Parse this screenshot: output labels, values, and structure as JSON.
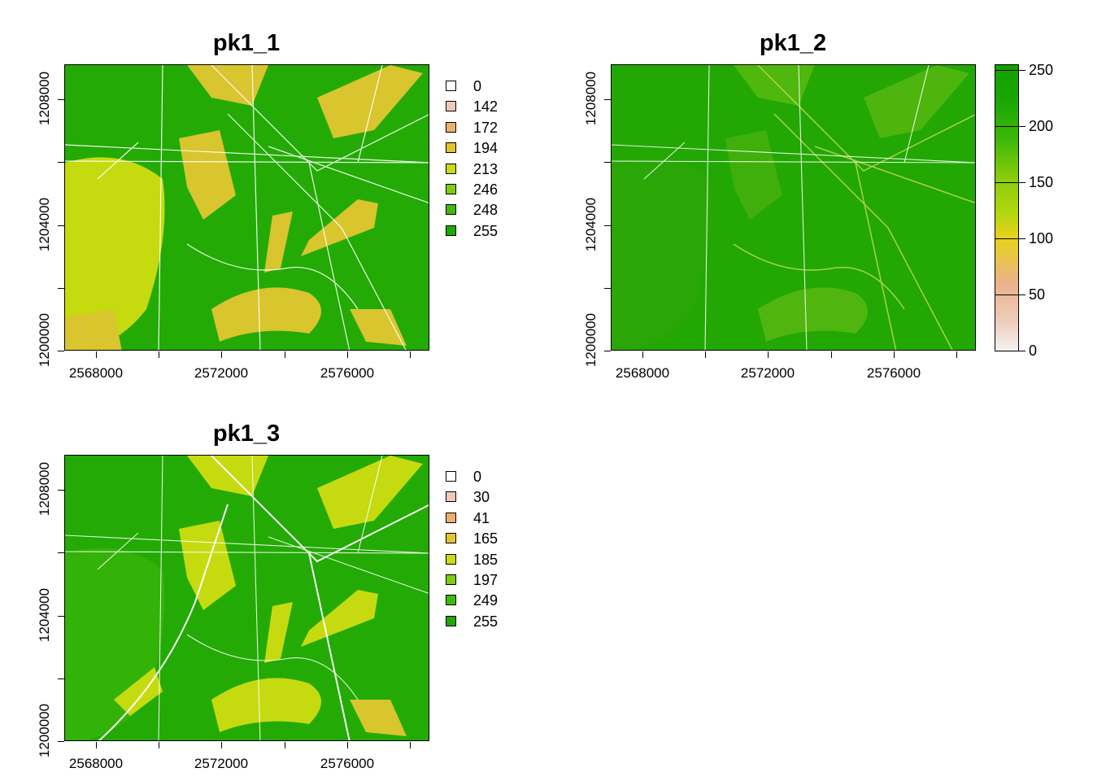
{
  "panels": [
    {
      "title": "pk1_1",
      "x_ticks": [
        "2568000",
        "2572000",
        "2576000"
      ],
      "y_ticks": [
        "1200000",
        "1204000",
        "1208000"
      ],
      "legend": {
        "type": "categorical",
        "items": [
          {
            "label": "0",
            "color": "#ffffff"
          },
          {
            "label": "142",
            "color": "#f2c9b8"
          },
          {
            "label": "172",
            "color": "#ebb06e"
          },
          {
            "label": "194",
            "color": "#e5c42a"
          },
          {
            "label": "213",
            "color": "#c8dc10"
          },
          {
            "label": "246",
            "color": "#7ccf0a"
          },
          {
            "label": "248",
            "color": "#3fbb07"
          },
          {
            "label": "255",
            "color": "#1fa800"
          }
        ]
      }
    },
    {
      "title": "pk1_2",
      "x_ticks": [
        "2568000",
        "2572000",
        "2576000"
      ],
      "y_ticks": [
        "1200000",
        "1204000",
        "1208000"
      ],
      "legend": {
        "type": "continuous",
        "ticks": [
          "0",
          "50",
          "100",
          "150",
          "200",
          "250"
        ],
        "colors": [
          "#f2f2f2",
          "#ebb28a",
          "#e6d21a",
          "#9fd00f",
          "#3cb80a",
          "#13a100"
        ]
      }
    },
    {
      "title": "pk1_3",
      "x_ticks": [
        "2568000",
        "2572000",
        "2576000"
      ],
      "y_ticks": [
        "1200000",
        "1204000",
        "1208000"
      ],
      "legend": {
        "type": "categorical",
        "items": [
          {
            "label": "0",
            "color": "#ffffff"
          },
          {
            "label": "30",
            "color": "#f2c9b8"
          },
          {
            "label": "41",
            "color": "#ebb06e"
          },
          {
            "label": "165",
            "color": "#e5c42a"
          },
          {
            "label": "185",
            "color": "#c8dc10"
          },
          {
            "label": "197",
            "color": "#7ccf0a"
          },
          {
            "label": "249",
            "color": "#3fbb07"
          },
          {
            "label": "255",
            "color": "#1fa800"
          }
        ]
      }
    }
  ]
}
